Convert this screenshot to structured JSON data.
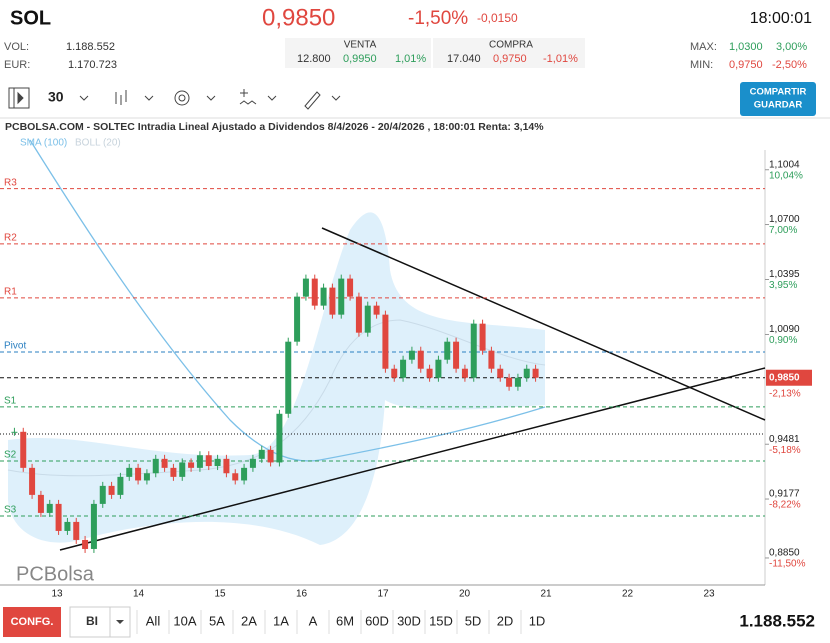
{
  "header": {
    "symbol": "SOL",
    "price": "0,9850",
    "change_pct": "-1,50%",
    "change": "-0,0150",
    "time": "18:00:01"
  },
  "stats": {
    "vol_label": "VOL:",
    "vol": "1.188.552",
    "eur_label": "EUR:",
    "eur": "1.170.723"
  },
  "quotes": {
    "venta": {
      "label": "VENTA",
      "qty": "12.800",
      "price": "0,9950",
      "pct": "1,01%"
    },
    "compra": {
      "label": "COMPRA",
      "qty": "17.040",
      "price": "0,9750",
      "pct": "-1,01%"
    }
  },
  "range": {
    "max_label": "MAX:",
    "max": "1,0300",
    "max_pct": "3,00%",
    "min_label": "MIN:",
    "min": "0,9750",
    "min_pct": "-2,50%"
  },
  "toolbar": {
    "interval": "30",
    "button": [
      "COMPARTIR",
      "GUARDAR"
    ]
  },
  "chart": {
    "title": "PCBOLSA.COM - SOLTEC Intradia Lineal Ajustado a Dividendos 8/4/2026 - 20/4/2026 , 18:00:01 Renta: 3,14%",
    "legend_sma": "SMA (100)",
    "legend_boll": "BOLL (20)",
    "watermark": "PCBolsa",
    "ylim": [
      0.87,
      1.128
    ],
    "ticks": [
      {
        "value": 1.1004,
        "label": "1,1004",
        "pct": "10,04%"
      },
      {
        "value": 1.07,
        "label": "1,0700",
        "pct": "7,00%"
      },
      {
        "value": 1.0395,
        "label": "1,0395",
        "pct": "3,95%"
      },
      {
        "value": 1.009,
        "label": "1,0090",
        "pct": "0,90%"
      },
      {
        "value": 0.9481,
        "label": "0,9481",
        "pct": "-5,18%"
      },
      {
        "value": 0.9177,
        "label": "0,9177",
        "pct": "-8,22%"
      },
      {
        "value": 0.885,
        "label": "0,8850",
        "pct": "-11,50%"
      }
    ],
    "current": {
      "value": 0.985,
      "label": "0,9850",
      "pct": "-2,13%"
    },
    "levels": [
      {
        "name": "R3",
        "value": 1.0899,
        "color": "#e0473f"
      },
      {
        "name": "R2",
        "value": 1.0593,
        "color": "#e0473f"
      },
      {
        "name": "R1",
        "value": 1.0293,
        "color": "#e0473f"
      },
      {
        "name": "Pivot",
        "value": 0.9993,
        "color": "#2a7fc1"
      },
      {
        "name": "S1",
        "value": 0.9688,
        "color": "#2e9e5b"
      },
      {
        "name": "S2",
        "value": 0.9388,
        "color": "#2e9e5b"
      },
      {
        "name": "S3",
        "value": 0.9083,
        "color": "#2e9e5b"
      }
    ],
    "x_labels": [
      "13",
      "14",
      "15",
      "16",
      "17",
      "20",
      "21",
      "22",
      "23"
    ],
    "closes": [
      0.955,
      0.935,
      0.92,
      0.91,
      0.915,
      0.9,
      0.905,
      0.895,
      0.89,
      0.915,
      0.925,
      0.92,
      0.93,
      0.935,
      0.928,
      0.932,
      0.94,
      0.935,
      0.93,
      0.938,
      0.935,
      0.942,
      0.936,
      0.94,
      0.932,
      0.928,
      0.935,
      0.94,
      0.945,
      0.938,
      0.965,
      1.005,
      1.03,
      1.04,
      1.025,
      1.035,
      1.02,
      1.04,
      1.03,
      1.01,
      1.025,
      1.02,
      0.99,
      0.985,
      0.995,
      1.0,
      0.99,
      0.985,
      0.995,
      1.005,
      0.99,
      0.985,
      1.015,
      1.0,
      0.99,
      0.985,
      0.98,
      0.985,
      0.99,
      0.985
    ]
  },
  "footer": {
    "config": "CONFG.",
    "mode": "BI",
    "periods": [
      "All",
      "10A",
      "5A",
      "2A",
      "1A",
      "A",
      "6M",
      "60D",
      "30D",
      "15D",
      "5D",
      "2D",
      "1D"
    ],
    "volume": "1.188.552"
  }
}
